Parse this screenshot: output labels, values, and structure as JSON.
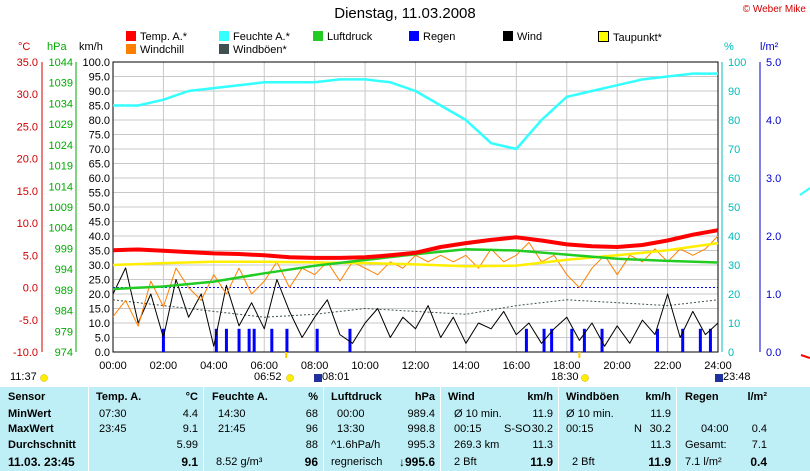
{
  "header": {
    "title": "Dienstag, 11.03.2008",
    "copyright": "© Weber Mike"
  },
  "legend": [
    {
      "label": "Temp. A.*",
      "color": "#ff0000"
    },
    {
      "label": "Feuchte A.*",
      "color": "#33ffff"
    },
    {
      "label": "Luftdruck",
      "color": "#22cc22"
    },
    {
      "label": "Regen",
      "color": "#0000ff"
    },
    {
      "label": "Wind",
      "color": "#000000"
    },
    {
      "label": "Taupunkt*",
      "color": "#ffff00"
    },
    {
      "label": "Windchill",
      "color": "#ff8000"
    },
    {
      "label": "Windböen*",
      "color": "#405050"
    }
  ],
  "axes": {
    "unit_temp": "°C",
    "unit_hpa": "hPa",
    "unit_kmh": "km/h",
    "unit_pct": "%",
    "unit_rain": "l/m²",
    "temp_ticks": [
      "35.0",
      "30.0",
      "25.0",
      "20.0",
      "15.0",
      "10.0",
      "5.0",
      "0.0",
      "-5.0",
      "-10.0"
    ],
    "hpa_ticks": [
      "1044",
      "1039",
      "1034",
      "1029",
      "1024",
      "1019",
      "1014",
      "1009",
      "1004",
      "999",
      "994",
      "989",
      "984",
      "979",
      "974"
    ],
    "kmh_ticks": [
      "100.0",
      "95.0",
      "90.0",
      "85.0",
      "80.0",
      "75.0",
      "70.0",
      "65.0",
      "60.0",
      "55.0",
      "50.0",
      "45.0",
      "40.0",
      "35.0",
      "30.0",
      "25.0",
      "20.0",
      "15.0",
      "10.0",
      "5.0",
      "0.0"
    ],
    "pct_ticks": [
      "100",
      "90",
      "80",
      "70",
      "60",
      "50",
      "40",
      "30",
      "20",
      "10",
      "0"
    ],
    "rain_ticks": [
      "5.0",
      "4.0",
      "3.0",
      "2.0",
      "1.0",
      "0.0"
    ],
    "time_ticks": [
      "00:00",
      "02:00",
      "04:00",
      "06:00",
      "08:00",
      "10:00",
      "12:00",
      "14:00",
      "16:00",
      "18:00",
      "20:00",
      "22:00",
      "24:00"
    ]
  },
  "markers": {
    "sunrise": "06:52",
    "sunset": "18:30",
    "moonrise": "08:01",
    "moonset": "23:48",
    "left_time": "11:37"
  },
  "chart_data": {
    "type": "line",
    "x_unit": "hour",
    "xlim": [
      0,
      24
    ],
    "series": [
      {
        "name": "Temp. A.*",
        "axis": "°C",
        "ylim": [
          -10,
          35
        ],
        "x": [
          0,
          1,
          2,
          3,
          4,
          5,
          6,
          7,
          8,
          9,
          10,
          11,
          12,
          13,
          14,
          15,
          16,
          17,
          18,
          19,
          20,
          21,
          22,
          23,
          24
        ],
        "values": [
          5.8,
          5.9,
          5.7,
          5.5,
          5.3,
          5.2,
          5.0,
          4.7,
          4.6,
          4.6,
          4.7,
          5.0,
          5.4,
          6.3,
          6.9,
          7.4,
          7.8,
          7.3,
          6.7,
          6.4,
          6.3,
          6.6,
          7.3,
          8.2,
          8.9
        ]
      },
      {
        "name": "Feuchte A.*",
        "axis": "%",
        "ylim": [
          0,
          100
        ],
        "x": [
          0,
          1,
          2,
          3,
          4,
          5,
          6,
          7,
          8,
          9,
          10,
          11,
          12,
          13,
          14,
          15,
          16,
          17,
          18,
          19,
          20,
          21,
          22,
          23,
          24
        ],
        "values": [
          85,
          85,
          87,
          90,
          91,
          92,
          93,
          93,
          93,
          94,
          94,
          93,
          90,
          85,
          80,
          72,
          70,
          80,
          88,
          90,
          92,
          94,
          95,
          96,
          96
        ]
      },
      {
        "name": "Luftdruck",
        "axis": "hPa",
        "ylim": [
          974,
          1044
        ],
        "x": [
          0,
          2,
          4,
          6,
          8,
          10,
          12,
          14,
          16,
          18,
          20,
          22,
          24
        ],
        "values": [
          989.2,
          989.8,
          991.0,
          993.0,
          994.8,
          996.2,
          997.6,
          998.8,
          998.5,
          997.5,
          996.5,
          996.0,
          995.6
        ]
      },
      {
        "name": "Taupunkt*",
        "axis": "°C",
        "ylim": [
          -10,
          35
        ],
        "x": [
          0,
          2,
          4,
          6,
          8,
          10,
          12,
          14,
          16,
          18,
          20,
          22,
          24
        ],
        "values": [
          3.5,
          3.8,
          4.0,
          4.0,
          3.9,
          3.8,
          3.6,
          3.3,
          3.4,
          4.3,
          5.0,
          5.8,
          6.9
        ]
      },
      {
        "name": "Windchill",
        "axis": "°C",
        "ylim": [
          -10,
          35
        ],
        "x": [
          0,
          0.5,
          1,
          1.5,
          2,
          2.5,
          3,
          3.5,
          4,
          4.5,
          5,
          5.5,
          6,
          6.5,
          7,
          7.5,
          8,
          8.5,
          9,
          9.5,
          10,
          10.5,
          11,
          11.5,
          12,
          12.5,
          13,
          13.5,
          14,
          14.5,
          15,
          15.5,
          16,
          16.5,
          17,
          17.5,
          18,
          18.5,
          19,
          19.5,
          20,
          20.5,
          21,
          21.5,
          22,
          22.5,
          23,
          23.5,
          24
        ],
        "values": [
          -4.5,
          -2,
          -6,
          1,
          -3,
          3,
          0,
          -2,
          2,
          -1,
          3,
          -1,
          1,
          4,
          0,
          3,
          2,
          4,
          1,
          4,
          3,
          2,
          4,
          3,
          5,
          4,
          5,
          4,
          5,
          3,
          6,
          4,
          5,
          7,
          4,
          5,
          2,
          0,
          3,
          5,
          2,
          5,
          4,
          6,
          4,
          6,
          5,
          6,
          8
        ]
      },
      {
        "name": "Wind",
        "axis": "km/h",
        "ylim": [
          0,
          100
        ],
        "x": [
          0,
          0.5,
          1,
          1.5,
          2,
          2.5,
          3,
          3.5,
          4,
          4.5,
          5,
          5.5,
          6,
          6.5,
          7,
          7.5,
          8,
          8.5,
          9,
          9.5,
          10,
          10.5,
          11,
          11.5,
          12,
          12.5,
          13,
          13.5,
          14,
          14.5,
          15,
          15.5,
          16,
          16.5,
          17,
          17.5,
          18,
          18.5,
          19,
          19.5,
          20,
          20.5,
          21,
          21.5,
          22,
          22.5,
          23,
          23.5,
          24
        ],
        "values": [
          20,
          29,
          10,
          20,
          5,
          25,
          12,
          20,
          2,
          23,
          9,
          17,
          8,
          25,
          14,
          5,
          12,
          18,
          6,
          3,
          10,
          15,
          5,
          12,
          8,
          16,
          5,
          12,
          3,
          10,
          8,
          14,
          6,
          10,
          3,
          8,
          12,
          4,
          10,
          2,
          9,
          3,
          11,
          6,
          20,
          5,
          14,
          6,
          10
        ]
      },
      {
        "name": "Windböen*",
        "axis": "km/h",
        "ylim": [
          0,
          100
        ],
        "x": [
          0,
          2,
          4,
          6,
          8,
          10,
          12,
          14,
          16,
          18,
          20,
          22,
          24
        ],
        "values": [
          18,
          16,
          14,
          12,
          13,
          15,
          14,
          13,
          16,
          18,
          17,
          16,
          18
        ]
      },
      {
        "name": "Regen",
        "axis": "l/m²",
        "ylim": [
          0,
          5
        ],
        "x": [
          2.0,
          4.1,
          4.5,
          5.0,
          5.4,
          5.6,
          6.3,
          6.9,
          8.1,
          9.4,
          16.4,
          17.1,
          17.4,
          18.2,
          18.7,
          19.4,
          21.6,
          22.6,
          23.3,
          23.7
        ],
        "values": [
          0.4,
          0.4,
          0.4,
          0.4,
          0.4,
          0.4,
          0.4,
          0.4,
          0.4,
          0.4,
          0.4,
          0.4,
          0.4,
          0.4,
          0.4,
          0.4,
          0.4,
          0.4,
          0.4,
          0.4
        ]
      }
    ]
  },
  "table": {
    "sensor": {
      "header": "Sensor",
      "rows": [
        "MinWert",
        "MaxWert",
        "Durchschnitt",
        "11.03. 23:45"
      ]
    },
    "temp": {
      "header": "Temp. A.",
      "unit": "°C",
      "rows": [
        [
          "07:30",
          "4.4"
        ],
        [
          "23:45",
          "9.1"
        ],
        [
          "",
          "5.99"
        ],
        [
          "",
          "9.1"
        ]
      ]
    },
    "hum": {
      "header": "Feuchte A.",
      "unit": "%",
      "rows": [
        [
          "14:30",
          "68"
        ],
        [
          "21:45",
          "96"
        ],
        [
          "",
          "88"
        ],
        [
          "8.52 g/m³",
          "96"
        ]
      ]
    },
    "press": {
      "header": "Luftdruck",
      "unit": "hPa",
      "rows": [
        [
          "00:00",
          "989.4"
        ],
        [
          "13:30",
          "998.8"
        ],
        [
          "^1.6hPa/h",
          "995.3"
        ],
        [
          "regnerisch",
          "↓995.6"
        ]
      ]
    },
    "wind": {
      "header": "Wind",
      "unit": "km/h",
      "rows": [
        [
          "Ø 10 min.",
          "",
          "11.9"
        ],
        [
          "00:15",
          "S-SO",
          "30.2"
        ],
        [
          "269.3 km",
          "",
          "11.3"
        ],
        [
          "2 Bft",
          "",
          "11.9"
        ]
      ]
    },
    "gust": {
      "header": "Windböen",
      "unit": "km/h",
      "rows": [
        [
          "Ø 10 min.",
          "",
          "11.9"
        ],
        [
          "00:15",
          "N",
          "30.2"
        ],
        [
          "",
          "",
          "11.3"
        ],
        [
          "2 Bft",
          "",
          "11.9"
        ]
      ]
    },
    "rain": {
      "header": "Regen",
      "unit": "l/m²",
      "rows": [
        [
          "",
          ""
        ],
        [
          "04:00",
          "0.4"
        ],
        [
          "Gesamt:",
          "7.1"
        ],
        [
          "7.1 l/m²",
          "0.4"
        ]
      ]
    }
  }
}
